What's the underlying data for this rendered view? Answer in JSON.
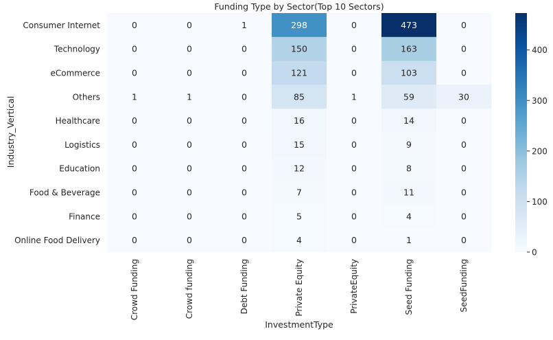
{
  "chart_data": {
    "type": "heatmap",
    "title": "Funding Type by Sector(Top 10 Sectors)",
    "xlabel": "InvestmentType",
    "ylabel": "Industry_Vertical",
    "columns": [
      "Crowd Funding",
      "Crowd funding",
      "Debt Funding",
      "Private Equity",
      "PrivateEquity",
      "Seed Funding",
      "SeedFunding"
    ],
    "rows": [
      "Consumer Internet",
      "Technology",
      "eCommerce",
      "Others",
      "Healthcare",
      "Logistics",
      "Education",
      "Food & Beverage",
      "Finance",
      "Online Food Delivery"
    ],
    "values": [
      [
        0,
        0,
        1,
        298,
        0,
        473,
        0
      ],
      [
        0,
        0,
        0,
        150,
        0,
        163,
        0
      ],
      [
        0,
        0,
        0,
        121,
        0,
        103,
        0
      ],
      [
        1,
        1,
        0,
        85,
        1,
        59,
        30
      ],
      [
        0,
        0,
        0,
        16,
        0,
        14,
        0
      ],
      [
        0,
        0,
        0,
        15,
        0,
        9,
        0
      ],
      [
        0,
        0,
        0,
        12,
        0,
        8,
        0
      ],
      [
        0,
        0,
        0,
        7,
        0,
        11,
        0
      ],
      [
        0,
        0,
        0,
        5,
        0,
        4,
        0
      ],
      [
        0,
        0,
        0,
        4,
        0,
        1,
        0
      ]
    ],
    "colormap": "Blues",
    "colorbar": {
      "min": 0,
      "max": 473,
      "ticks": [
        0,
        100,
        200,
        300,
        400
      ]
    },
    "annotate": true,
    "colors": {
      "low": "#f7fbff",
      "high": "#08306b",
      "text_dark": "#262626",
      "text_light": "#ffffff"
    }
  }
}
